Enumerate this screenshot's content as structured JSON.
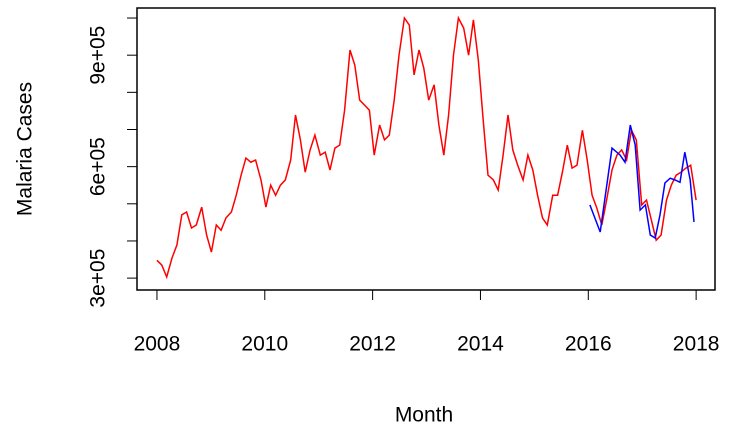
{
  "chart_data": {
    "type": "line",
    "xlabel": "Month",
    "ylabel": "Malaria Cases",
    "xlim": [
      2007.63,
      2018.35
    ],
    "xticks": [
      2008,
      2010,
      2012,
      2014,
      2016,
      2018
    ],
    "ylim": [
      268000,
      1027000
    ],
    "yticks": [
      {
        "value": 300000,
        "label": "3e+05"
      },
      {
        "value": 600000,
        "label": "6e+05"
      },
      {
        "value": 900000,
        "label": "9e+05"
      }
    ],
    "yminor_ticks": [
      400000,
      500000,
      700000,
      800000,
      1000000
    ],
    "series": [
      {
        "color": "#ff0000",
        "x": [
          2008.0,
          2008.09,
          2008.18,
          2008.28,
          2008.37,
          2008.46,
          2008.55,
          2008.64,
          2008.73,
          2008.83,
          2008.92,
          2009.01,
          2009.1,
          2009.19,
          2009.28,
          2009.38,
          2009.47,
          2009.56,
          2009.65,
          2009.74,
          2009.83,
          2009.93,
          2010.02,
          2010.11,
          2010.2,
          2010.29,
          2010.38,
          2010.48,
          2010.57,
          2010.66,
          2010.75,
          2010.84,
          2010.93,
          2011.03,
          2011.12,
          2011.21,
          2011.3,
          2011.39,
          2011.48,
          2011.58,
          2011.67,
          2011.76,
          2011.85,
          2011.94,
          2012.03,
          2012.13,
          2012.22,
          2012.31,
          2012.4,
          2012.49,
          2012.59,
          2012.68,
          2012.77,
          2012.86,
          2012.95,
          2013.04,
          2013.14,
          2013.23,
          2013.32,
          2013.41,
          2013.5,
          2013.59,
          2013.69,
          2013.78,
          2013.87,
          2013.96,
          2014.05,
          2014.14,
          2014.24,
          2014.33,
          2014.42,
          2014.51,
          2014.6,
          2014.69,
          2014.79,
          2014.88,
          2014.97,
          2015.06,
          2015.15,
          2015.24,
          2015.34,
          2015.43,
          2015.52,
          2015.61,
          2015.7,
          2015.79,
          2015.89,
          2015.98,
          2016.07,
          2016.16,
          2016.25,
          2016.34,
          2016.44,
          2016.53,
          2016.62,
          2016.71,
          2016.8,
          2016.89,
          2016.99,
          2017.08,
          2017.17,
          2017.26,
          2017.35,
          2017.45,
          2017.54,
          2017.63,
          2017.72,
          2017.81,
          2017.9,
          2018.0
        ],
        "values": [
          348000,
          335000,
          303000,
          354000,
          389000,
          470000,
          478000,
          435000,
          443000,
          491000,
          416000,
          370000,
          443000,
          429000,
          462000,
          478000,
          523000,
          577000,
          623000,
          612000,
          618000,
          564000,
          491000,
          550000,
          523000,
          550000,
          564000,
          618000,
          739000,
          672000,
          585000,
          645000,
          685000,
          631000,
          639000,
          591000,
          650000,
          658000,
          752000,
          914000,
          873000,
          779000,
          766000,
          752000,
          631000,
          712000,
          672000,
          685000,
          779000,
          900000,
          1000000,
          981000,
          847000,
          914000,
          865000,
          779000,
          820000,
          712000,
          631000,
          739000,
          900000,
          1000000,
          973000,
          900000,
          995000,
          887000,
          725000,
          577000,
          564000,
          537000,
          631000,
          739000,
          645000,
          604000,
          564000,
          631000,
          591000,
          523000,
          462000,
          443000,
          523000,
          523000,
          585000,
          658000,
          596000,
          604000,
          698000,
          618000,
          523000,
          488000,
          443000,
          510000,
          591000,
          631000,
          645000,
          618000,
          698000,
          672000,
          497000,
          510000,
          456000,
          402000,
          416000,
          510000,
          550000,
          577000,
          585000,
          596000,
          604000,
          510000
        ]
      },
      {
        "color": "#0000ff",
        "x": [
          2016.03,
          2016.22,
          2016.44,
          2016.59,
          2016.68,
          2016.78,
          2016.87,
          2016.96,
          2017.06,
          2017.15,
          2017.24,
          2017.33,
          2017.42,
          2017.52,
          2017.61,
          2017.7,
          2017.79,
          2017.89,
          2017.96
        ],
        "values": [
          497000,
          424000,
          650000,
          631000,
          612000,
          712000,
          658000,
          483000,
          497000,
          416000,
          408000,
          470000,
          556000,
          569000,
          564000,
          558000,
          639000,
          564000,
          451000
        ]
      }
    ]
  }
}
